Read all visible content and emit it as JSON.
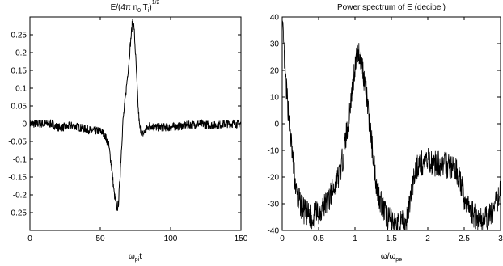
{
  "chart_data": [
    {
      "type": "line",
      "title": "E/(4π n",
      "title_parts": [
        "E/(4π n",
        "0",
        " T",
        "i",
        ")",
        "1/2"
      ],
      "xlabel_parts": [
        "ω",
        "pi",
        "t"
      ],
      "xlim": [
        0,
        150
      ],
      "ylim": [
        -0.3,
        0.3
      ],
      "xticks": [
        0,
        50,
        100,
        150
      ],
      "yticks": [
        -0.25,
        -0.2,
        -0.15,
        -0.1,
        -0.05,
        0,
        0.05,
        0.1,
        0.15,
        0.2,
        0.25
      ],
      "ytick_labels": [
        "-0.25",
        "-0.2",
        "-0.15",
        "-0.1",
        "-0.05",
        "0",
        "0.05",
        "0.1",
        "0.15",
        "0.2",
        "0.25"
      ],
      "grid": false,
      "color": "#000000",
      "series": [
        {
          "x": [
            0,
            10,
            15,
            20,
            25,
            30,
            35,
            40,
            45,
            50,
            53,
            56,
            58,
            60,
            62,
            63,
            64,
            66,
            68,
            70,
            72,
            73,
            74,
            75,
            76,
            77,
            78,
            80,
            82,
            85,
            90,
            100,
            110,
            120,
            130,
            140,
            150
          ],
          "values": [
            0,
            0,
            0,
            -0.01,
            -0.01,
            -0.005,
            -0.01,
            -0.015,
            -0.02,
            -0.02,
            -0.03,
            -0.06,
            -0.12,
            -0.2,
            -0.24,
            -0.22,
            -0.15,
            0.0,
            0.08,
            0.16,
            0.25,
            0.29,
            0.27,
            0.2,
            0.12,
            0.04,
            -0.01,
            -0.03,
            -0.02,
            -0.005,
            -0.01,
            -0.01,
            -0.005,
            0.0,
            -0.005,
            0.0,
            0.0
          ],
          "noise_band": 0.012
        }
      ]
    },
    {
      "type": "line",
      "title": "Power spectrum of E (decibel)",
      "xlabel_parts": [
        "ω/ω",
        "pe"
      ],
      "xlim": [
        0,
        3
      ],
      "ylim": [
        -40,
        40
      ],
      "xticks": [
        0,
        0.5,
        1,
        1.5,
        2,
        2.5,
        3
      ],
      "xtick_labels": [
        "0",
        "0.5",
        "1",
        "1.5",
        "2",
        "2.5",
        "3"
      ],
      "yticks": [
        -40,
        -30,
        -20,
        -10,
        0,
        10,
        20,
        30,
        40
      ],
      "grid": false,
      "color": "#000000",
      "series": [
        {
          "x": [
            0,
            0.05,
            0.1,
            0.15,
            0.2,
            0.3,
            0.4,
            0.5,
            0.6,
            0.7,
            0.8,
            0.85,
            0.9,
            0.95,
            1.0,
            1.05,
            1.1,
            1.15,
            1.2,
            1.25,
            1.3,
            1.4,
            1.5,
            1.6,
            1.7,
            1.8,
            1.85,
            1.9,
            2.0,
            2.1,
            2.2,
            2.3,
            2.4,
            2.45,
            2.5,
            2.6,
            2.7,
            2.8,
            2.9,
            3.0
          ],
          "values": [
            38,
            15,
            0,
            -15,
            -27,
            -33,
            -35,
            -33,
            -30,
            -25,
            -18,
            -10,
            0,
            10,
            22,
            27,
            22,
            12,
            0,
            -12,
            -24,
            -33,
            -37,
            -38,
            -37,
            -22,
            -16,
            -15,
            -14,
            -15,
            -15,
            -16,
            -18,
            -22,
            -28,
            -33,
            -36,
            -36,
            -33,
            -25
          ],
          "noise_band": 5
        }
      ]
    }
  ]
}
